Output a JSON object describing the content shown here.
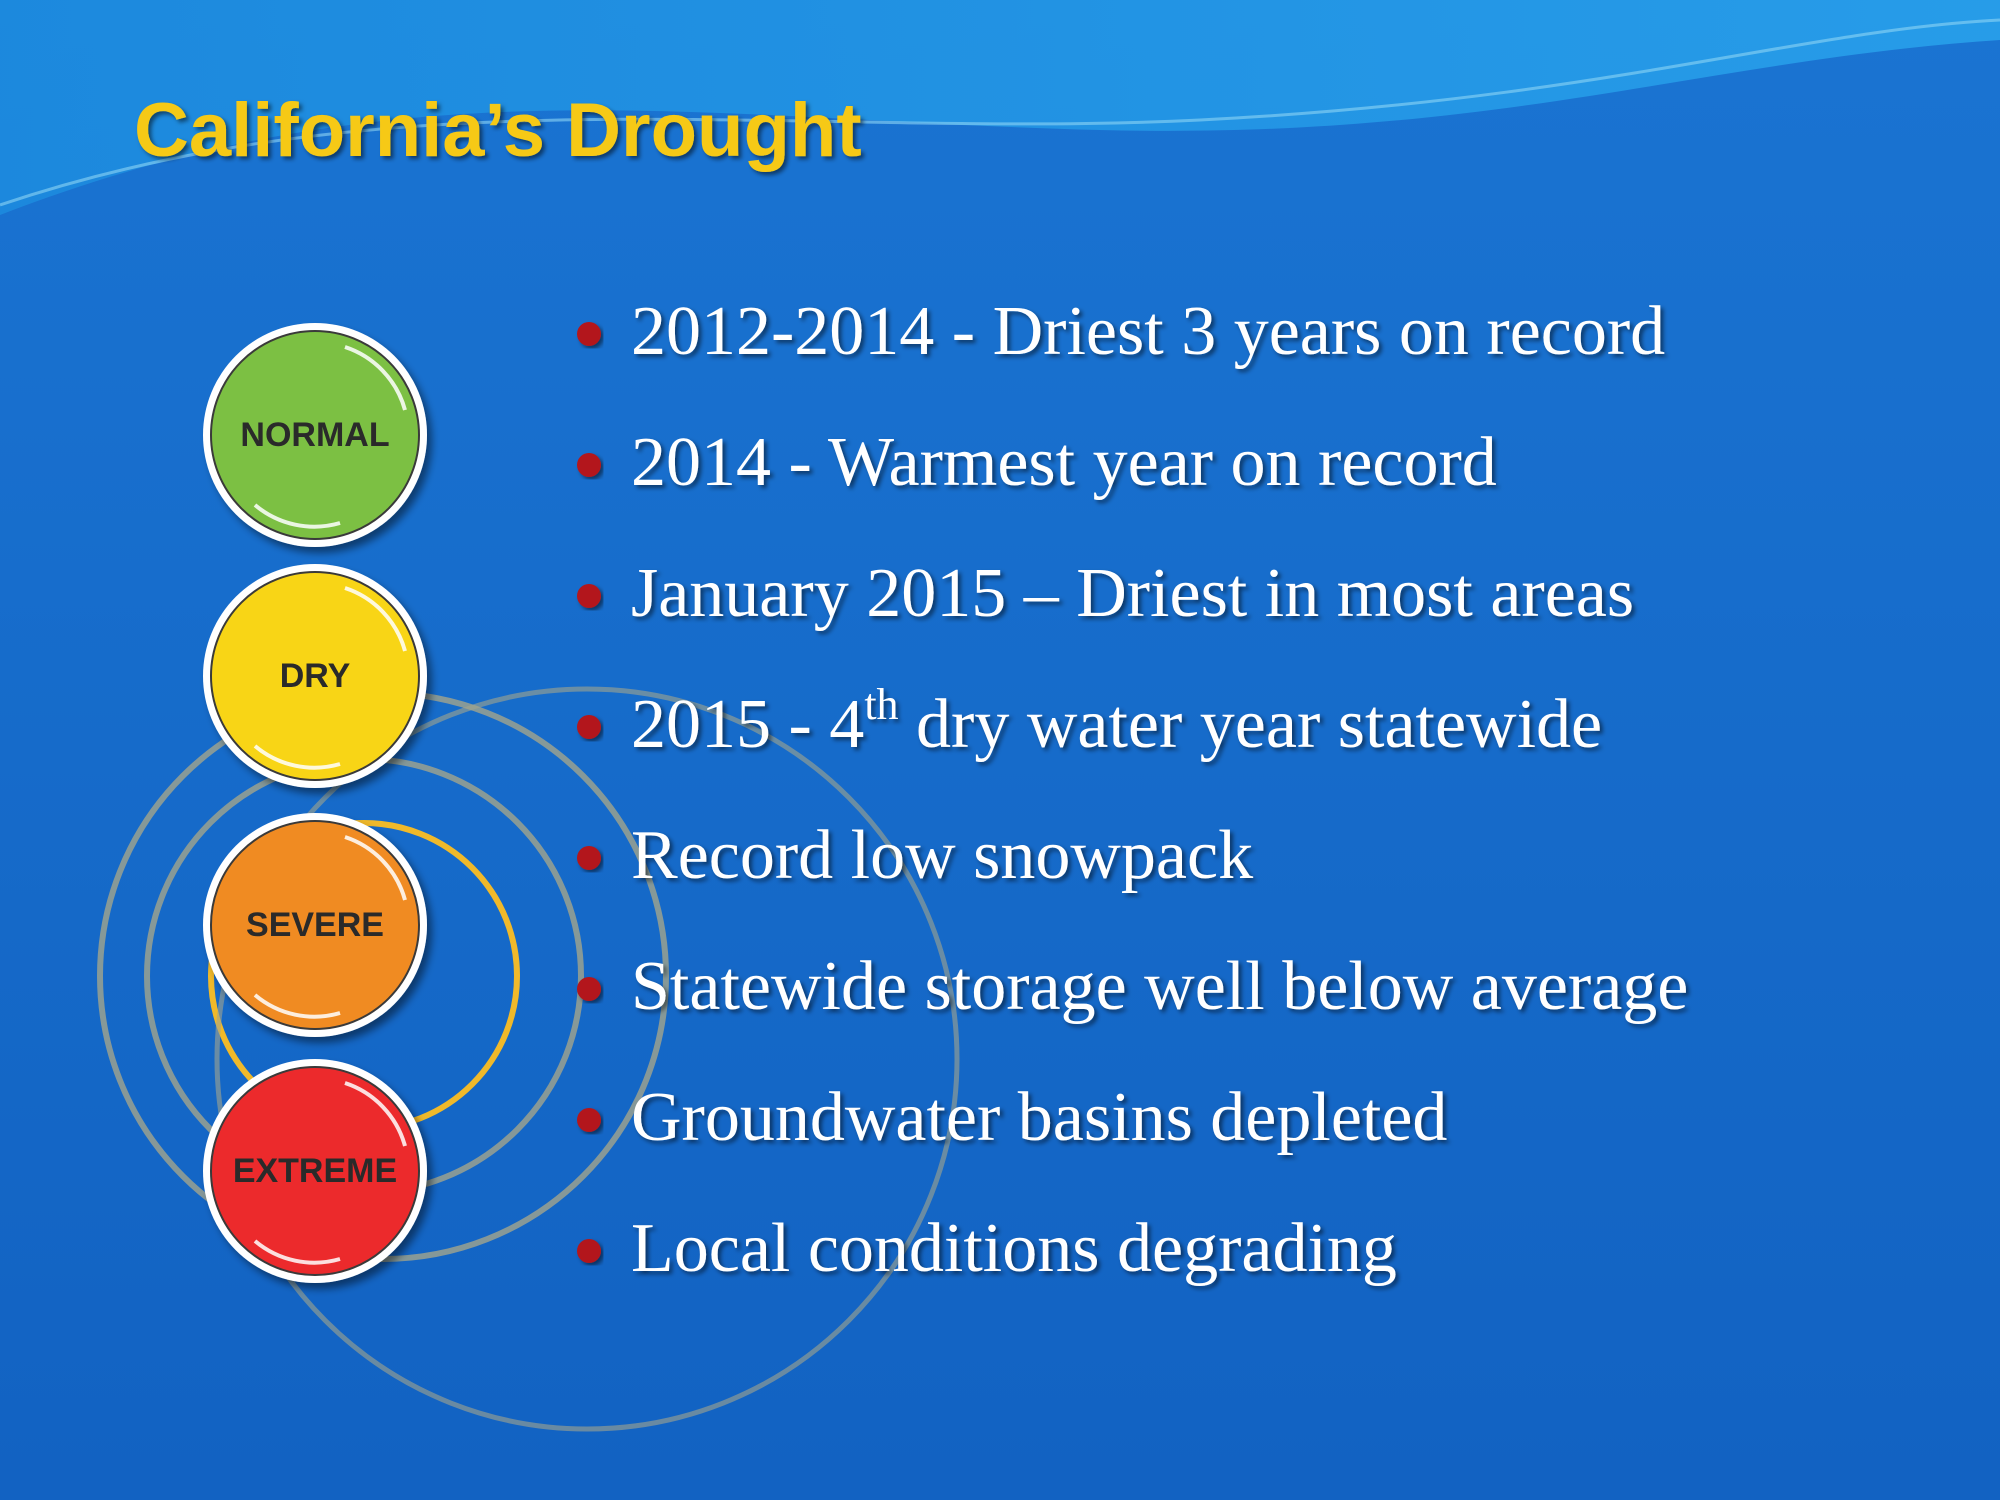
{
  "header": {
    "title": "California’s Drought"
  },
  "levels": [
    {
      "label": "NORMAL",
      "color": "#7cc043"
    },
    {
      "label": "DRY",
      "color": "#f8d516"
    },
    {
      "label": "SEVERE",
      "color": "#f08b22"
    },
    {
      "label": "EXTREME",
      "color": "#ec2a2c"
    }
  ],
  "bullets": [
    {
      "text": "2012-2014 - Driest 3 years on record"
    },
    {
      "text": "2014 - Warmest year on record"
    },
    {
      "text": "January 2015 – Driest in most areas"
    },
    {
      "text": "2015  - 4",
      "superscript": "th",
      "text_after": " dry water year statewide"
    },
    {
      "text": "Record low snowpack"
    },
    {
      "text": "Statewide storage well below average"
    },
    {
      "text": "Groundwater basins depleted"
    },
    {
      "text": "Local conditions degrading"
    }
  ]
}
